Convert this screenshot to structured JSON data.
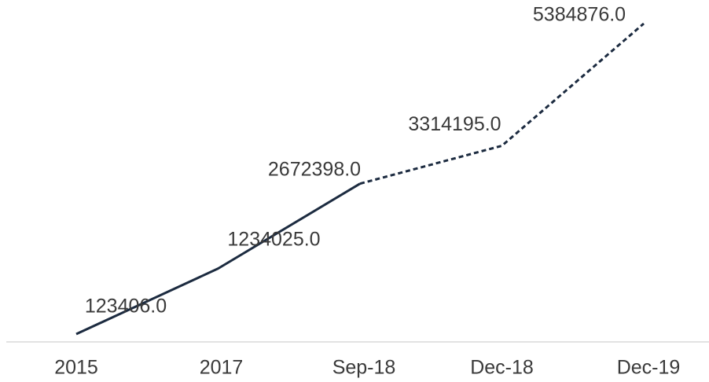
{
  "chart_data": {
    "type": "line",
    "categories": [
      "2015",
      "2017",
      "Sep-18",
      "Dec-18",
      "Dec-19"
    ],
    "values": [
      123406,
      1234025,
      2672398,
      3314195,
      5384876
    ],
    "value_labels": [
      "123406.0",
      "1234025.0",
      "2672398.0",
      "3314195.0",
      "5384876.0"
    ],
    "color": "#1c2b40",
    "dashed_from_index": 2
  }
}
